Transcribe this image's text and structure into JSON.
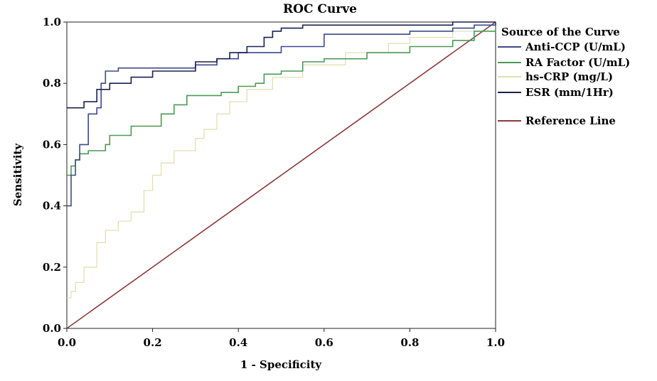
{
  "chart_data": {
    "type": "line",
    "title": "ROC Curve",
    "xlabel": "1 - Specificity",
    "ylabel": "Sensitivity",
    "xlim": [
      0,
      1
    ],
    "ylim": [
      0,
      1
    ],
    "x_ticks": [
      "0.0",
      "0.2",
      "0.4",
      "0.6",
      "0.8",
      "1.0"
    ],
    "y_ticks": [
      "0.0",
      "0.2",
      "0.4",
      "0.6",
      "0.8",
      "1.0"
    ],
    "legend_title": "Source of the Curve",
    "legend_position": "right",
    "series": [
      {
        "name": "Anti-CCP (U/mL)",
        "color": "#3c4a8c",
        "x": [
          0,
          0.01,
          0.02,
          0.03,
          0.05,
          0.07,
          0.08,
          0.09,
          0.12,
          0.2,
          0.3,
          0.35,
          0.4,
          0.45,
          0.5,
          0.6,
          0.7,
          0.8,
          0.9,
          0.95,
          1
        ],
        "y": [
          0.4,
          0.5,
          0.55,
          0.6,
          0.7,
          0.72,
          0.8,
          0.84,
          0.85,
          0.85,
          0.86,
          0.88,
          0.9,
          0.9,
          0.92,
          0.96,
          0.96,
          0.97,
          0.98,
          0.99,
          1
        ]
      },
      {
        "name": "RA Factor (U/mL)",
        "color": "#4a9a55",
        "x": [
          0,
          0.01,
          0.02,
          0.03,
          0.05,
          0.09,
          0.1,
          0.15,
          0.22,
          0.25,
          0.28,
          0.36,
          0.4,
          0.44,
          0.46,
          0.5,
          0.55,
          0.6,
          0.7,
          0.75,
          0.8,
          0.9,
          0.95,
          1
        ],
        "y": [
          0.5,
          0.53,
          0.55,
          0.57,
          0.58,
          0.6,
          0.63,
          0.66,
          0.7,
          0.73,
          0.76,
          0.77,
          0.79,
          0.8,
          0.83,
          0.84,
          0.87,
          0.88,
          0.9,
          0.9,
          0.92,
          0.94,
          0.97,
          1
        ]
      },
      {
        "name": "hs-CRP (mg/L)",
        "color": "#e3dfb4",
        "x": [
          0,
          0.01,
          0.02,
          0.04,
          0.07,
          0.09,
          0.12,
          0.15,
          0.18,
          0.2,
          0.22,
          0.25,
          0.3,
          0.32,
          0.35,
          0.38,
          0.42,
          0.48,
          0.55,
          0.65,
          0.75,
          0.8,
          0.9,
          0.95,
          1
        ],
        "y": [
          0.1,
          0.12,
          0.15,
          0.2,
          0.28,
          0.32,
          0.35,
          0.38,
          0.45,
          0.5,
          0.54,
          0.58,
          0.62,
          0.65,
          0.7,
          0.74,
          0.78,
          0.82,
          0.86,
          0.9,
          0.93,
          0.95,
          0.97,
          0.99,
          1
        ]
      },
      {
        "name": "ESR (mm/1Hr)",
        "color": "#1a2050",
        "x": [
          0,
          0.02,
          0.04,
          0.07,
          0.1,
          0.15,
          0.2,
          0.3,
          0.35,
          0.38,
          0.42,
          0.46,
          0.48,
          0.5,
          0.55,
          0.6,
          0.7,
          0.8,
          0.9,
          0.95,
          1
        ],
        "y": [
          0.72,
          0.72,
          0.74,
          0.78,
          0.8,
          0.82,
          0.84,
          0.87,
          0.88,
          0.9,
          0.92,
          0.95,
          0.97,
          0.98,
          0.99,
          0.99,
          0.99,
          0.99,
          1,
          1,
          1
        ]
      },
      {
        "name": "Reference Line",
        "color": "#8b3a3a",
        "x": [
          0,
          1
        ],
        "y": [
          0,
          1
        ]
      }
    ]
  }
}
